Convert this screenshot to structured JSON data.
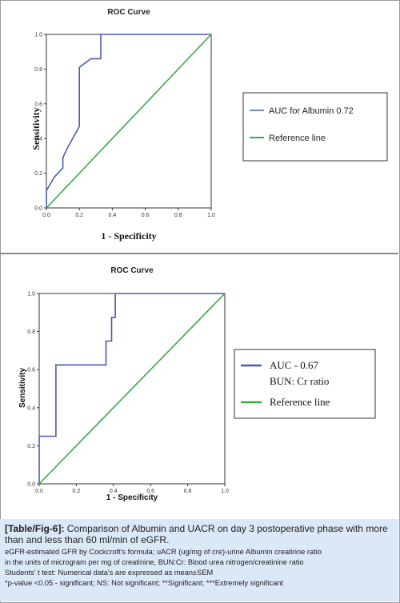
{
  "chart_data": [
    {
      "type": "line",
      "title": "ROC Curve",
      "xlabel": "1 - Specificity",
      "ylabel": "Sensitivity",
      "xlim": [
        0,
        1
      ],
      "ylim": [
        0,
        1
      ],
      "x_ticks": [
        "0.0",
        "0.2",
        "0.4",
        "0.6",
        "0.8",
        "1.0"
      ],
      "y_ticks": [
        "0.0",
        "0.2",
        "0.4",
        "0.6",
        "0.8",
        "1.0"
      ],
      "legend_placement": "right",
      "legend": [
        "AUC for Albumin 0.72",
        "Reference line"
      ],
      "series": [
        {
          "name": "AUC for Albumin 0.72",
          "color": "#4a5bb0",
          "x": [
            0.0,
            0.0,
            0.05,
            0.1,
            0.1,
            0.13,
            0.2,
            0.2,
            0.27,
            0.27,
            0.33,
            0.33,
            1.0
          ],
          "y": [
            0.0,
            0.1,
            0.18,
            0.23,
            0.29,
            0.35,
            0.47,
            0.81,
            0.86,
            0.86,
            0.86,
            1.0,
            1.0
          ]
        },
        {
          "name": "Reference line",
          "color": "#3aa84a",
          "x": [
            0,
            1
          ],
          "y": [
            0,
            1
          ]
        }
      ]
    },
    {
      "type": "line",
      "title": "ROC Curve",
      "xlabel": "1 - Specificity",
      "ylabel": "Sensitivity",
      "xlim": [
        0,
        1
      ],
      "ylim": [
        0,
        1
      ],
      "x_ticks": [
        "0.0",
        "0.2",
        "0.4",
        "0.6",
        "0.8",
        "1.0"
      ],
      "y_ticks": [
        "0.0",
        "0.2",
        "0.4",
        "0.6",
        "0.8",
        "1.0"
      ],
      "legend_placement": "right",
      "legend": [
        "AUC - 0.67",
        "BUN: Cr ratio",
        "Reference line"
      ],
      "series": [
        {
          "name": "AUC - 0.67",
          "color": "#4a5bb0",
          "x": [
            0.0,
            0.0,
            0.09,
            0.09,
            0.36,
            0.36,
            0.39,
            0.39,
            0.41,
            0.41,
            1.0
          ],
          "y": [
            0.0,
            0.25,
            0.25,
            0.625,
            0.625,
            0.75,
            0.75,
            0.875,
            0.875,
            1.0,
            1.0
          ]
        },
        {
          "name": "Reference line",
          "color": "#3aa84a",
          "x": [
            0,
            1
          ],
          "y": [
            0,
            1
          ]
        }
      ]
    }
  ],
  "caption": {
    "label": "[Table/Fig-6]:",
    "text": " Comparison of Albumin and UACR on day 3 postoperative phase with more than and less than 60 ml/min of eGFR.",
    "lines": [
      "eGFR-estimated GFR by Cockcroft's formula; uACR (ug/mg of cre)-urine Albumin creatinne ratio",
      "in the units of microgram per mg of creatinine, BUN:Cr: Blood urea nitrogen/creatinine ratio",
      "Students' t test: Numerical data's are expressed as mean±SEM",
      "*p-value <0.05 - significant; NS: Not significant; **Significant; ***Extremely significant"
    ]
  },
  "colors": {
    "caption_bg": "#dbe8f7",
    "axis": "#333333",
    "curve": "#4a5bb0",
    "reference": "#3aa84a"
  }
}
